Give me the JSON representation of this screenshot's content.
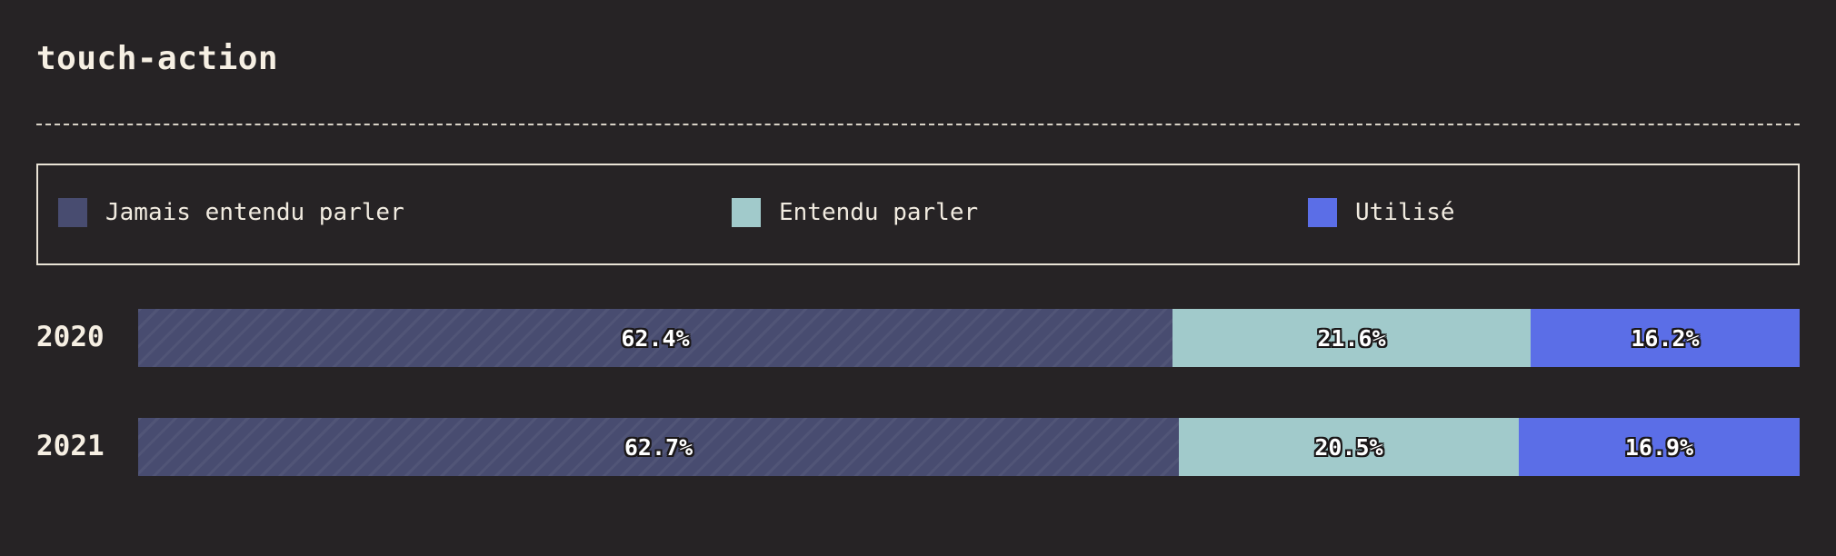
{
  "header": {
    "title": "touch-action"
  },
  "colors": {
    "background": "#262325",
    "never_heard": "#484c70",
    "heard": "#a1cacb",
    "used": "#5b6ee7"
  },
  "legend": [
    {
      "label": "Jamais entendu parler",
      "color": "#484c70"
    },
    {
      "label": "Entendu parler",
      "color": "#a1cacb"
    },
    {
      "label": "Utilisé",
      "color": "#5b6ee7"
    }
  ],
  "chart_data": {
    "type": "bar",
    "orientation": "horizontal",
    "stacked": true,
    "title": "touch-action",
    "categories": [
      "2020",
      "2021"
    ],
    "series": [
      {
        "name": "Jamais entendu parler",
        "values": [
          62.4,
          62.7
        ],
        "labels": [
          "62.4%",
          "62.7%"
        ]
      },
      {
        "name": "Entendu parler",
        "values": [
          21.6,
          20.5
        ],
        "labels": [
          "21.6%",
          "20.5%"
        ]
      },
      {
        "name": "Utilisé",
        "values": [
          16.2,
          16.9
        ],
        "labels": [
          "16.2%",
          "16.9%"
        ]
      }
    ],
    "unit": "%",
    "xlim": [
      0,
      100
    ],
    "legend_position": "top",
    "grid": false
  }
}
